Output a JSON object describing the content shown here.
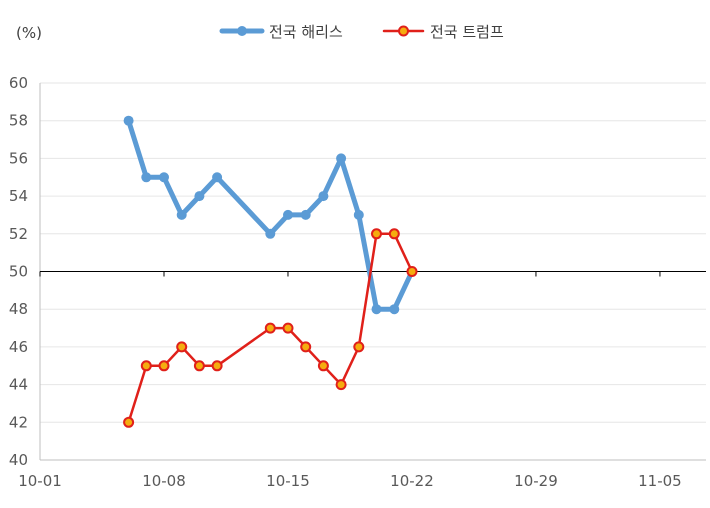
{
  "chart_data": {
    "type": "line",
    "title": "",
    "xlabel": "",
    "ylabel": "(%)",
    "ylim": [
      40,
      60
    ],
    "yticks": [
      40,
      42,
      44,
      46,
      48,
      50,
      52,
      54,
      56,
      58,
      60
    ],
    "xlim": [
      "10-01",
      "11-08"
    ],
    "xtick_labels": [
      "10-01",
      "10-08",
      "10-15",
      "10-22",
      "10-29",
      "11-05"
    ],
    "reference_line": 50,
    "grid": "horizontal",
    "legend_position": "top-center",
    "series": [
      {
        "name": "전국 해리스",
        "color": "#5B9BD5",
        "marker": "circle",
        "points": [
          {
            "x": "10-06",
            "y": 58
          },
          {
            "x": "10-07",
            "y": 55
          },
          {
            "x": "10-08",
            "y": 55
          },
          {
            "x": "10-09",
            "y": 53
          },
          {
            "x": "10-10",
            "y": 54
          },
          {
            "x": "10-11",
            "y": 55
          },
          {
            "x": "10-14",
            "y": 52
          },
          {
            "x": "10-15",
            "y": 53
          },
          {
            "x": "10-16",
            "y": 53
          },
          {
            "x": "10-17",
            "y": 54
          },
          {
            "x": "10-18",
            "y": 56
          },
          {
            "x": "10-19",
            "y": 53
          },
          {
            "x": "10-20",
            "y": 48
          },
          {
            "x": "10-21",
            "y": 48
          },
          {
            "x": "10-22",
            "y": 50
          }
        ]
      },
      {
        "name": "전국 트럼프",
        "color": "#E0201A",
        "marker_fill": "#F5AC0F",
        "marker": "circle",
        "points": [
          {
            "x": "10-06",
            "y": 42
          },
          {
            "x": "10-07",
            "y": 45
          },
          {
            "x": "10-08",
            "y": 45
          },
          {
            "x": "10-09",
            "y": 46
          },
          {
            "x": "10-10",
            "y": 45
          },
          {
            "x": "10-11",
            "y": 45
          },
          {
            "x": "10-14",
            "y": 47
          },
          {
            "x": "10-15",
            "y": 47
          },
          {
            "x": "10-16",
            "y": 46
          },
          {
            "x": "10-17",
            "y": 45
          },
          {
            "x": "10-18",
            "y": 44
          },
          {
            "x": "10-19",
            "y": 46
          },
          {
            "x": "10-20",
            "y": 52
          },
          {
            "x": "10-21",
            "y": 52
          },
          {
            "x": "10-22",
            "y": 50
          }
        ]
      }
    ]
  }
}
